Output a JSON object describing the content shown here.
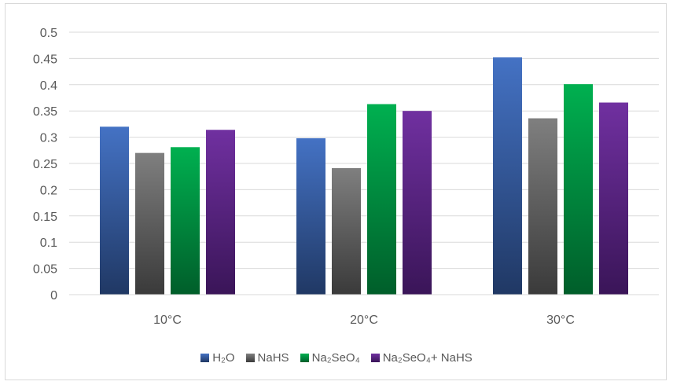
{
  "chart_data": {
    "type": "bar",
    "title": "",
    "xlabel": "",
    "ylabel": "",
    "categories": [
      "10°C",
      "20°C",
      "30°C"
    ],
    "ylim": [
      0,
      0.5
    ],
    "yticks": [
      "0",
      "0.05",
      "0.1",
      "0.15",
      "0.2",
      "0.25",
      "0.3",
      "0.35",
      "0.4",
      "0.45",
      "0.5"
    ],
    "grid": true,
    "legend_position": "bottom",
    "series": [
      {
        "name": "H₂O",
        "values": [
          0.32,
          0.298,
          0.452
        ],
        "color": "#4472c4",
        "color_dark": "#203864"
      },
      {
        "name": "NaHS",
        "values": [
          0.27,
          0.241,
          0.336
        ],
        "color": "#7f7f7f",
        "color_dark": "#3a3a3a"
      },
      {
        "name": "Na₂SeO₄",
        "values": [
          0.281,
          0.363,
          0.401
        ],
        "color": "#00b050",
        "color_dark": "#005e2a"
      },
      {
        "name": "Na₂SeO₄+ NaHS",
        "values": [
          0.314,
          0.35,
          0.366
        ],
        "color": "#7030a0",
        "color_dark": "#3a1558"
      }
    ]
  }
}
